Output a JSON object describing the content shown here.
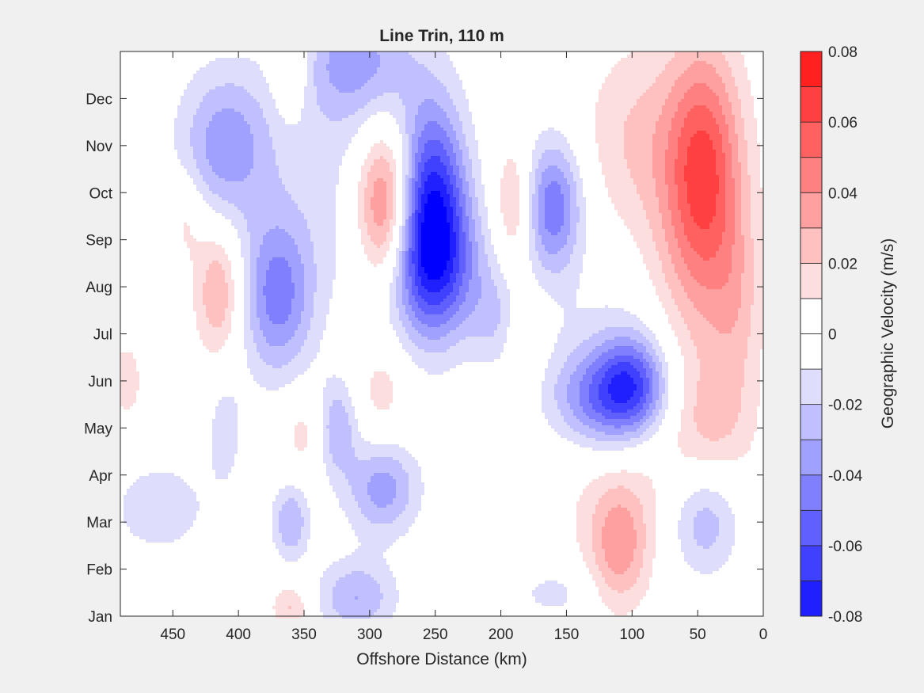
{
  "chart_data": {
    "type": "contourf",
    "title": "Line Trin, 110 m",
    "xlabel": "Offshore Distance (km)",
    "ylabel": "",
    "x_direction": "reversed",
    "xlim": [
      490,
      0
    ],
    "xticks": [
      450,
      400,
      350,
      300,
      250,
      200,
      150,
      100,
      50,
      0
    ],
    "yticks": [
      {
        "label": "Jan",
        "month": 1
      },
      {
        "label": "Feb",
        "month": 2
      },
      {
        "label": "Mar",
        "month": 3
      },
      {
        "label": "Apr",
        "month": 4
      },
      {
        "label": "May",
        "month": 5
      },
      {
        "label": "Jun",
        "month": 6
      },
      {
        "label": "Jul",
        "month": 7
      },
      {
        "label": "Aug",
        "month": 8
      },
      {
        "label": "Sep",
        "month": 9
      },
      {
        "label": "Oct",
        "month": 10
      },
      {
        "label": "Nov",
        "month": 11
      },
      {
        "label": "Dec",
        "month": 12
      }
    ],
    "ylim": [
      1,
      13
    ],
    "colorbar": {
      "label": "Geographic Velocity (m/s)",
      "clim": [
        -0.08,
        0.08
      ],
      "ticks": [
        {
          "label": "0.08",
          "value": 0.08
        },
        {
          "label": "0.06",
          "value": 0.06
        },
        {
          "label": "0.04",
          "value": 0.04
        },
        {
          "label": "0.02",
          "value": 0.02
        },
        {
          "label": "0",
          "value": 0
        },
        {
          "label": "-0.02",
          "value": -0.02
        },
        {
          "label": "-0.04",
          "value": -0.04
        },
        {
          "label": "-0.06",
          "value": -0.06
        },
        {
          "label": "-0.08",
          "value": -0.08
        }
      ],
      "levels": [
        -0.08,
        -0.07,
        -0.06,
        -0.05,
        -0.04,
        -0.03,
        -0.02,
        -0.01,
        0,
        0.01,
        0.02,
        0.03,
        0.04,
        0.05,
        0.06,
        0.07,
        0.08
      ],
      "colors": [
        "#0000ff",
        "#2020ff",
        "#4040ff",
        "#6060ff",
        "#8080ff",
        "#a0a0ff",
        "#c0c0ff",
        "#dedefc",
        "#ffffff",
        "#ffffff",
        "#fcdede",
        "#ffc0c0",
        "#ffa0a0",
        "#ff8080",
        "#ff6060",
        "#ff4040",
        "#ff2020",
        "#ff0000"
      ]
    },
    "features": [
      {
        "km": 288,
        "month": 9.65,
        "peak": 0.058,
        "width_km": 22,
        "height_months": 1.7
      },
      {
        "km": 252,
        "month": 9.65,
        "peak": -0.075,
        "width_km": 26,
        "height_months": 2.2
      },
      {
        "km": 252,
        "month": 8.3,
        "peak": -0.035,
        "width_km": 45,
        "height_months": 1.5
      },
      {
        "km": 160,
        "month": 9.7,
        "peak": -0.048,
        "width_km": 22,
        "height_months": 1.4
      },
      {
        "km": 190,
        "month": 9.7,
        "peak": 0.026,
        "width_km": 15,
        "height_months": 1.3
      },
      {
        "km": 45,
        "month": 10.6,
        "peak": 0.045,
        "width_km": 28,
        "height_months": 2.5
      },
      {
        "km": 50,
        "month": 9.0,
        "peak": 0.025,
        "width_km": 40,
        "height_months": 3.5
      },
      {
        "km": 100,
        "month": 11.2,
        "peak": 0.018,
        "width_km": 40,
        "height_months": 2.0
      },
      {
        "km": 410,
        "month": 11.0,
        "peak": -0.036,
        "width_km": 35,
        "height_months": 1.6
      },
      {
        "km": 370,
        "month": 7.8,
        "peak": -0.044,
        "width_km": 28,
        "height_months": 1.7
      },
      {
        "km": 415,
        "month": 7.9,
        "peak": 0.032,
        "width_km": 18,
        "height_months": 1.4
      },
      {
        "km": 360,
        "month": 12.8,
        "peak": 0.022,
        "width_km": 15,
        "height_months": 1.2
      },
      {
        "km": 310,
        "month": 12.8,
        "peak": -0.032,
        "width_km": 45,
        "height_months": 1.3
      },
      {
        "km": 330,
        "month": 10.5,
        "peak": -0.012,
        "width_km": 60,
        "height_months": 2.5
      },
      {
        "km": 120,
        "month": 5.6,
        "peak": -0.04,
        "width_km": 40,
        "height_months": 1.0
      },
      {
        "km": 100,
        "month": 6.0,
        "peak": -0.038,
        "width_km": 25,
        "height_months": 1.0
      },
      {
        "km": 115,
        "month": 6.2,
        "peak": -0.015,
        "width_km": 55,
        "height_months": 2.0
      },
      {
        "km": 290,
        "month": 3.7,
        "peak": -0.035,
        "width_km": 28,
        "height_months": 1.0
      },
      {
        "km": 325,
        "month": 5.0,
        "peak": -0.03,
        "width_km": 15,
        "height_months": 1.0
      },
      {
        "km": 360,
        "month": 3.0,
        "peak": -0.03,
        "width_km": 14,
        "height_months": 0.8
      },
      {
        "km": 45,
        "month": 3.0,
        "peak": -0.032,
        "width_km": 28,
        "height_months": 1.2
      },
      {
        "km": 110,
        "month": 2.5,
        "peak": 0.032,
        "width_km": 22,
        "height_months": 1.3
      },
      {
        "km": 100,
        "month": 3.8,
        "peak": 0.012,
        "width_km": 90,
        "height_months": 2.0
      },
      {
        "km": 40,
        "month": 5.2,
        "peak": 0.015,
        "width_km": 30,
        "height_months": 1.2
      },
      {
        "km": 460,
        "month": 3.3,
        "peak": -0.015,
        "width_km": 45,
        "height_months": 1.2
      },
      {
        "km": 290,
        "month": 5.8,
        "peak": 0.015,
        "width_km": 20,
        "height_months": 1.0
      },
      {
        "km": 350,
        "month": 4.9,
        "peak": 0.015,
        "width_km": 18,
        "height_months": 0.9
      },
      {
        "km": 310,
        "month": 1.4,
        "peak": -0.03,
        "width_km": 30,
        "height_months": 0.8
      },
      {
        "km": 180,
        "month": 7.0,
        "peak": 0.015,
        "width_km": 14,
        "height_months": 0.9
      },
      {
        "km": 205,
        "month": 7.3,
        "peak": -0.015,
        "width_km": 18,
        "height_months": 1.0
      },
      {
        "km": 440,
        "month": 9.5,
        "peak": 0.015,
        "width_km": 14,
        "height_months": 1.0
      },
      {
        "km": 485,
        "month": 6.0,
        "peak": 0.015,
        "width_km": 14,
        "height_months": 1.0
      },
      {
        "km": 410,
        "month": 5.0,
        "peak": -0.015,
        "width_km": 14,
        "height_months": 1.2
      },
      {
        "km": 160,
        "month": 1.5,
        "peak": -0.015,
        "width_km": 30,
        "height_months": 0.6
      },
      {
        "km": 360,
        "month": 1.2,
        "peak": 0.022,
        "width_km": 15,
        "height_months": 0.5
      },
      {
        "km": 20,
        "month": 7.5,
        "peak": 0.015,
        "width_km": 20,
        "height_months": 2.0
      }
    ]
  }
}
